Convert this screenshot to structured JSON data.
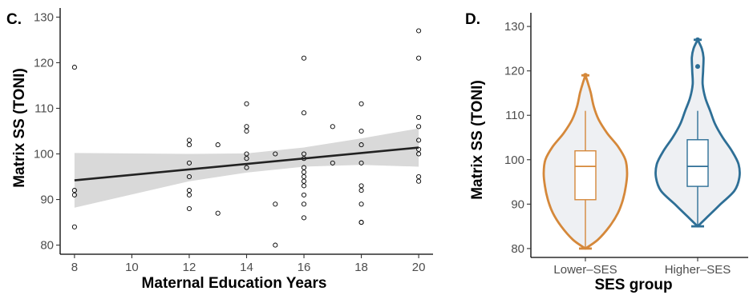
{
  "chart_data": [
    {
      "panel": "C.",
      "type": "scatter",
      "xlabel": "Maternal Education Years",
      "ylabel": "Matrix SS (TONI)",
      "xlim": [
        7.5,
        20.5
      ],
      "ylim": [
        78,
        132
      ],
      "xticks": [
        8,
        10,
        12,
        14,
        16,
        18,
        20
      ],
      "yticks": [
        80,
        90,
        100,
        110,
        120,
        130
      ],
      "grid": false,
      "points": [
        [
          8,
          119
        ],
        [
          8,
          92
        ],
        [
          8,
          91
        ],
        [
          8,
          84
        ],
        [
          12,
          103
        ],
        [
          12,
          102
        ],
        [
          12,
          98
        ],
        [
          12,
          95
        ],
        [
          12,
          92
        ],
        [
          12,
          91
        ],
        [
          12,
          88
        ],
        [
          13,
          102
        ],
        [
          13,
          87
        ],
        [
          14,
          111
        ],
        [
          14,
          106
        ],
        [
          14,
          105
        ],
        [
          14,
          100
        ],
        [
          14,
          99
        ],
        [
          14,
          97
        ],
        [
          15,
          100
        ],
        [
          15,
          89
        ],
        [
          15,
          80
        ],
        [
          16,
          121
        ],
        [
          16,
          109
        ],
        [
          16,
          100
        ],
        [
          16,
          99
        ],
        [
          16,
          97
        ],
        [
          16,
          96
        ],
        [
          16,
          95
        ],
        [
          16,
          94
        ],
        [
          16,
          93
        ],
        [
          16,
          91
        ],
        [
          16,
          89
        ],
        [
          16,
          86
        ],
        [
          17,
          106
        ],
        [
          17,
          98
        ],
        [
          18,
          111
        ],
        [
          18,
          105
        ],
        [
          18,
          102
        ],
        [
          18,
          98
        ],
        [
          18,
          93
        ],
        [
          18,
          92
        ],
        [
          18,
          89
        ],
        [
          18,
          85
        ],
        [
          18,
          85
        ],
        [
          20,
          127
        ],
        [
          20,
          121
        ],
        [
          20,
          108
        ],
        [
          20,
          106
        ],
        [
          20,
          103
        ],
        [
          20,
          101
        ],
        [
          20,
          100
        ],
        [
          20,
          95
        ],
        [
          20,
          94
        ]
      ],
      "fit_line": {
        "x": [
          8,
          20
        ],
        "y": [
          94.2,
          101.4
        ],
        "color": "#222222"
      },
      "confidence_band": {
        "x": [
          8,
          12,
          14,
          16,
          18,
          20
        ],
        "lower": [
          88.2,
          94.0,
          95.9,
          97.2,
          97.6,
          97.2
        ],
        "upper": [
          100.2,
          100.0,
          100.1,
          101.4,
          103.4,
          105.6
        ],
        "color": "#d9d9d9"
      }
    },
    {
      "panel": "D.",
      "type": "violin",
      "xlabel": "SES group",
      "ylabel": "Matrix SS (TONI)",
      "ylim": [
        78,
        132
      ],
      "yticks": [
        80,
        90,
        100,
        110,
        120,
        130
      ],
      "categories": [
        "Lower–SES",
        "Higher–SES"
      ],
      "groups": [
        {
          "color": "#d5883a",
          "box": {
            "min": 80,
            "q1": 91,
            "median": 98.5,
            "q3": 102,
            "max": 111
          },
          "outliers": [
            119
          ],
          "range": [
            80,
            119
          ],
          "density": [
            [
              80,
              0.0
            ],
            [
              82,
              0.3
            ],
            [
              85,
              0.58
            ],
            [
              88,
              0.78
            ],
            [
              91,
              0.9
            ],
            [
              94,
              0.97
            ],
            [
              97,
              1.0
            ],
            [
              100,
              0.96
            ],
            [
              103,
              0.78
            ],
            [
              106,
              0.52
            ],
            [
              109,
              0.32
            ],
            [
              112,
              0.2
            ],
            [
              115,
              0.13
            ],
            [
              117,
              0.07
            ],
            [
              119,
              0.0
            ]
          ]
        },
        {
          "color": "#2e6f96",
          "box": {
            "min": 85,
            "q1": 94,
            "median": 98.5,
            "q3": 104.5,
            "max": 111
          },
          "outliers": [
            121,
            127
          ],
          "range": [
            85,
            127
          ],
          "density": [
            [
              85,
              0.0
            ],
            [
              87,
              0.22
            ],
            [
              90,
              0.55
            ],
            [
              93,
              0.88
            ],
            [
              96,
              1.0
            ],
            [
              99,
              0.98
            ],
            [
              102,
              0.82
            ],
            [
              105,
              0.6
            ],
            [
              108,
              0.42
            ],
            [
              111,
              0.3
            ],
            [
              114,
              0.18
            ],
            [
              117,
              0.12
            ],
            [
              120,
              0.13
            ],
            [
              123,
              0.14
            ],
            [
              125,
              0.1
            ],
            [
              127,
              0.0
            ]
          ]
        }
      ]
    }
  ]
}
